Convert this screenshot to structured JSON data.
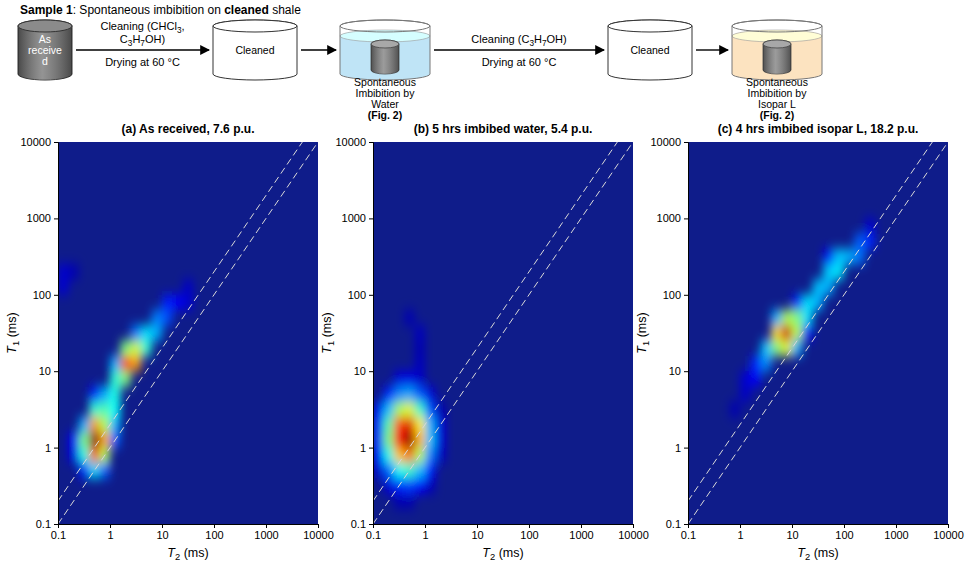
{
  "diagram": {
    "title": [
      {
        "text": "Sample 1",
        "bold": true
      },
      {
        "text": ": Spontaneous imbibition on ",
        "bold": false
      },
      {
        "text": "cleaned",
        "bold": true
      },
      {
        "text": " shale",
        "bold": false
      }
    ],
    "nodes": [
      {
        "shape": "cylinder",
        "color": "#707070",
        "label": [
          "As",
          "receive",
          "d"
        ]
      },
      {
        "shape": "cylinder",
        "color": "#ffffff",
        "label": [
          "Cleaned"
        ]
      },
      {
        "shape": "beaker",
        "color": "#bfe4f6",
        "label": [
          "Spontaneous",
          "Imbibition by",
          "Water"
        ],
        "ref": "(Fig. 2)"
      },
      {
        "shape": "cylinder",
        "color": "#ffffff",
        "label": [
          "Cleaned"
        ]
      },
      {
        "shape": "beaker",
        "color": "#fce3c0",
        "label": [
          "Spontaneous",
          "Imbibition by",
          "Isopar L"
        ],
        "ref": "(Fig. 2)"
      }
    ],
    "arrows": [
      {
        "from": 0,
        "to": 1,
        "above": [
          "Cleaning (CHCl3,",
          "C3H7OH)"
        ],
        "below": "Drying at 60 °C"
      },
      {
        "from": 1,
        "to": 2
      },
      {
        "from": 2,
        "to": 3,
        "above": [
          "Cleaning (C3H7OH)"
        ],
        "below": "Drying at 60 °C"
      },
      {
        "from": 3,
        "to": 4
      }
    ]
  },
  "chart_data": [
    {
      "type": "heatmap",
      "title": "(a) As received, 7.6 p.u.",
      "x_label": "T2 (ms)",
      "y_label": "T1 (ms)",
      "log": true,
      "xlim": [
        0.1,
        10000
      ],
      "ylim": [
        0.1,
        10000
      ],
      "xticks": [
        0.1,
        1,
        10,
        100,
        1000,
        10000
      ],
      "yticks": [
        0.1,
        1,
        10,
        100,
        1000,
        10000
      ],
      "t2_bins": [
        0.1,
        0.158,
        0.251,
        0.398,
        0.631,
        1,
        1.585,
        2.512,
        3.981,
        6.31,
        10,
        15.85,
        25.12,
        39.81,
        63.1,
        100,
        158.5,
        251.2,
        398.1,
        631,
        1000,
        1585,
        2512,
        3981,
        6310,
        10000
      ],
      "t1_bins": [
        0.1,
        0.158,
        0.251,
        0.398,
        0.631,
        1,
        1.585,
        2.512,
        3.981,
        6.31,
        10,
        15.85,
        25.12,
        39.81,
        63.1,
        100,
        158.5,
        251.2,
        398.1,
        631,
        1000,
        1585,
        2512,
        3981,
        6310,
        10000
      ],
      "cells": [
        [
          3,
          5,
          1.0
        ],
        [
          3,
          4,
          0.78
        ],
        [
          3,
          6,
          0.72
        ],
        [
          4,
          5,
          0.72
        ],
        [
          4,
          4,
          0.55
        ],
        [
          2,
          5,
          0.5
        ],
        [
          2,
          4,
          0.4
        ],
        [
          4,
          6,
          0.55
        ],
        [
          2,
          6,
          0.3
        ],
        [
          3,
          3,
          0.35
        ],
        [
          4,
          3,
          0.22
        ],
        [
          2,
          3,
          0.15
        ],
        [
          1,
          5,
          0.12
        ],
        [
          1,
          4,
          0.1
        ],
        [
          3,
          7,
          0.42
        ],
        [
          4,
          7,
          0.45
        ],
        [
          5,
          6,
          0.3
        ],
        [
          5,
          5,
          0.22
        ],
        [
          5,
          7,
          0.38
        ],
        [
          4,
          8,
          0.3
        ],
        [
          5,
          8,
          0.4
        ],
        [
          3,
          8,
          0.15
        ],
        [
          5,
          9,
          0.42
        ],
        [
          6,
          9,
          0.5
        ],
        [
          6,
          10,
          0.82
        ],
        [
          7,
          10,
          0.72
        ],
        [
          5,
          10,
          0.3
        ],
        [
          6,
          11,
          0.5
        ],
        [
          7,
          11,
          0.58
        ],
        [
          8,
          11,
          0.42
        ],
        [
          8,
          12,
          0.35
        ],
        [
          7,
          12,
          0.25
        ],
        [
          9,
          12,
          0.3
        ],
        [
          9,
          13,
          0.25
        ],
        [
          10,
          13,
          0.2
        ],
        [
          10,
          14,
          0.15
        ],
        [
          11,
          14,
          0.12
        ],
        [
          12,
          14,
          0.08
        ],
        [
          12,
          15,
          0.07
        ],
        [
          0,
          15,
          0.08
        ],
        [
          0,
          16,
          0.08
        ],
        [
          1,
          16,
          0.05
        ]
      ],
      "ratio_lines": [
        1,
        2
      ]
    },
    {
      "type": "heatmap",
      "title": "(b) 5 hrs imbibed water, 5.4 p.u.",
      "x_label": "T2 (ms)",
      "y_label": "T1 (ms)",
      "log": true,
      "xlim": [
        0.1,
        10000
      ],
      "ylim": [
        0.1,
        10000
      ],
      "xticks": [
        0.1,
        1,
        10,
        100,
        1000,
        10000
      ],
      "yticks": [
        0.1,
        1,
        10,
        100,
        1000,
        10000
      ],
      "t2_bins": [
        0.1,
        0.158,
        0.251,
        0.398,
        0.631,
        1,
        1.585,
        2.512,
        3.981,
        6.31,
        10,
        15.85,
        25.12,
        39.81,
        63.1,
        100,
        158.5,
        251.2,
        398.1,
        631,
        1000,
        1585,
        2512,
        3981,
        6310,
        10000
      ],
      "t1_bins": [
        0.1,
        0.158,
        0.251,
        0.398,
        0.631,
        1,
        1.585,
        2.512,
        3.981,
        6.31,
        10,
        15.85,
        25.12,
        39.81,
        63.1,
        100,
        158.5,
        251.2,
        398.1,
        631,
        1000,
        1585,
        2512,
        3981,
        6310,
        10000
      ],
      "cells": [
        [
          0,
          3,
          0.08
        ],
        [
          0,
          4,
          0.14
        ],
        [
          0,
          5,
          0.18
        ],
        [
          0,
          6,
          0.17
        ],
        [
          0,
          7,
          0.11
        ],
        [
          1,
          2,
          0.09
        ],
        [
          1,
          3,
          0.22
        ],
        [
          1,
          4,
          0.39
        ],
        [
          1,
          5,
          0.5
        ],
        [
          1,
          6,
          0.46
        ],
        [
          1,
          7,
          0.31
        ],
        [
          1,
          8,
          0.15
        ],
        [
          2,
          1,
          0.05
        ],
        [
          2,
          2,
          0.16
        ],
        [
          2,
          3,
          0.38
        ],
        [
          2,
          4,
          0.68
        ],
        [
          2,
          5,
          0.87
        ],
        [
          2,
          6,
          0.8
        ],
        [
          2,
          7,
          0.54
        ],
        [
          2,
          8,
          0.26
        ],
        [
          2,
          9,
          0.09
        ],
        [
          3,
          1,
          0.05
        ],
        [
          3,
          2,
          0.18
        ],
        [
          3,
          3,
          0.43
        ],
        [
          3,
          4,
          0.76
        ],
        [
          3,
          5,
          0.98
        ],
        [
          3,
          6,
          0.9
        ],
        [
          3,
          7,
          0.6
        ],
        [
          3,
          8,
          0.29
        ],
        [
          3,
          9,
          0.1
        ],
        [
          4,
          2,
          0.13
        ],
        [
          4,
          3,
          0.31
        ],
        [
          4,
          4,
          0.55
        ],
        [
          4,
          5,
          0.7
        ],
        [
          4,
          6,
          0.64
        ],
        [
          4,
          7,
          0.43
        ],
        [
          4,
          8,
          0.21
        ],
        [
          4,
          9,
          0.07
        ],
        [
          5,
          2,
          0.06
        ],
        [
          5,
          3,
          0.14
        ],
        [
          5,
          4,
          0.25
        ],
        [
          5,
          5,
          0.32
        ],
        [
          5,
          6,
          0.3
        ],
        [
          5,
          7,
          0.2
        ],
        [
          5,
          8,
          0.09
        ],
        [
          6,
          4,
          0.07
        ],
        [
          6,
          5,
          0.09
        ],
        [
          6,
          6,
          0.09
        ],
        [
          6,
          7,
          0.05
        ],
        [
          4,
          10,
          0.06
        ],
        [
          4,
          11,
          0.05
        ],
        [
          4,
          12,
          0.06
        ],
        [
          3,
          13,
          0.05
        ]
      ],
      "ratio_lines": [
        1,
        2
      ]
    },
    {
      "type": "heatmap",
      "title": "(c) 4 hrs imbibed isopar L, 18.2 p.u.",
      "x_label": "T2 (ms)",
      "y_label": "T1 (ms)",
      "log": true,
      "xlim": [
        0.1,
        10000
      ],
      "ylim": [
        0.1,
        10000
      ],
      "xticks": [
        0.1,
        1,
        10,
        100,
        1000,
        10000
      ],
      "yticks": [
        0.1,
        1,
        10,
        100,
        1000,
        10000
      ],
      "t2_bins": [
        0.1,
        0.158,
        0.251,
        0.398,
        0.631,
        1,
        1.585,
        2.512,
        3.981,
        6.31,
        10,
        15.85,
        25.12,
        39.81,
        63.1,
        100,
        158.5,
        251.2,
        398.1,
        631,
        1000,
        1585,
        2512,
        3981,
        6310,
        10000
      ],
      "t1_bins": [
        0.1,
        0.158,
        0.251,
        0.398,
        0.631,
        1,
        1.585,
        2.512,
        3.981,
        6.31,
        10,
        15.85,
        25.12,
        39.81,
        63.1,
        100,
        158.5,
        251.2,
        398.1,
        631,
        1000,
        1585,
        2512,
        3981,
        6310,
        10000
      ],
      "cells": [
        [
          4,
          7,
          0.05
        ],
        [
          5,
          8,
          0.07
        ],
        [
          5,
          9,
          0.08
        ],
        [
          6,
          9,
          0.12
        ],
        [
          6,
          10,
          0.16
        ],
        [
          7,
          10,
          0.26
        ],
        [
          7,
          11,
          0.32
        ],
        [
          8,
          11,
          0.5
        ],
        [
          8,
          12,
          0.66
        ],
        [
          8,
          13,
          0.3
        ],
        [
          9,
          11,
          0.6
        ],
        [
          9,
          12,
          0.92
        ],
        [
          9,
          13,
          0.55
        ],
        [
          10,
          11,
          0.3
        ],
        [
          10,
          12,
          0.56
        ],
        [
          10,
          13,
          0.5
        ],
        [
          10,
          14,
          0.15
        ],
        [
          11,
          12,
          0.12
        ],
        [
          11,
          13,
          0.35
        ],
        [
          11,
          14,
          0.35
        ],
        [
          12,
          14,
          0.3
        ],
        [
          12,
          15,
          0.32
        ],
        [
          13,
          15,
          0.3
        ],
        [
          13,
          16,
          0.33
        ],
        [
          13,
          17,
          0.12
        ],
        [
          14,
          16,
          0.36
        ],
        [
          14,
          17,
          0.32
        ],
        [
          15,
          17,
          0.3
        ],
        [
          16,
          17,
          0.24
        ],
        [
          16,
          18,
          0.22
        ],
        [
          17,
          18,
          0.16
        ],
        [
          17,
          19,
          0.08
        ]
      ],
      "ratio_lines": [
        1,
        2
      ]
    }
  ]
}
